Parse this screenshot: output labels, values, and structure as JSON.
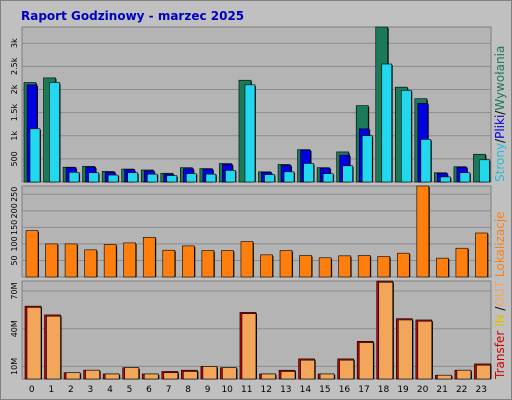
{
  "title": "Raport Godzinowy -  marzec 2025",
  "colors": {
    "background": "#c0c0c0",
    "plot": "#b4b4b4",
    "visits": "#1a7a5a",
    "files": "#0000e0",
    "pages": "#22d8ee",
    "sites": "#ff7f0e",
    "transfer_out": "#cc0000",
    "transfer_in": "#f2a65a",
    "title": "#0000c0"
  },
  "side_labels": {
    "top": [
      {
        "text": "Strony",
        "color": "#22c0d8"
      },
      {
        "text": "/",
        "color": "#000000"
      },
      {
        "text": "Pliki",
        "color": "#0000e0"
      },
      {
        "text": "/",
        "color": "#000000"
      },
      {
        "text": "Wywołania",
        "color": "#1a7a5a"
      }
    ],
    "middle": [
      {
        "text": "Lokalizacje",
        "color": "#ff7f0e"
      }
    ],
    "bottom": [
      {
        "text": "Transfer",
        "color": "#cc0000"
      },
      {
        "text": " IN ",
        "color": "#e0c000"
      },
      {
        "text": "/",
        "color": "#000000"
      },
      {
        "text": "OUT",
        "color": "#f2a65a"
      }
    ]
  },
  "chart_data": [
    {
      "type": "bar",
      "panel": "hits-files-pages",
      "categories": [
        "0",
        "1",
        "2",
        "3",
        "4",
        "5",
        "6",
        "7",
        "8",
        "9",
        "10",
        "11",
        "12",
        "13",
        "14",
        "15",
        "16",
        "17",
        "18",
        "19",
        "20",
        "21",
        "22",
        "23"
      ],
      "y_ticks": [
        "500",
        "1k",
        "1.5k",
        "2k",
        "2.5k",
        "3k"
      ],
      "ylim": [
        0,
        3350
      ],
      "series": [
        {
          "name": "Wywołania",
          "values": [
            2150,
            2250,
            320,
            340,
            230,
            280,
            260,
            190,
            310,
            290,
            400,
            2200,
            220,
            380,
            700,
            310,
            650,
            1650,
            3350,
            2050,
            1800,
            200,
            330,
            600
          ]
        },
        {
          "name": "Pliki",
          "values": [
            2100,
            0,
            310,
            320,
            210,
            270,
            240,
            170,
            290,
            280,
            380,
            0,
            210,
            360,
            690,
            300,
            580,
            1150,
            0,
            0,
            1700,
            190,
            320,
            0
          ]
        },
        {
          "name": "Strony",
          "values": [
            1150,
            2150,
            210,
            200,
            150,
            200,
            170,
            140,
            180,
            170,
            250,
            2100,
            160,
            220,
            400,
            180,
            350,
            1000,
            2550,
            1980,
            920,
            110,
            200,
            480
          ]
        }
      ]
    },
    {
      "type": "bar",
      "panel": "sites",
      "categories": [
        "0",
        "1",
        "2",
        "3",
        "4",
        "5",
        "6",
        "7",
        "8",
        "9",
        "10",
        "11",
        "12",
        "13",
        "14",
        "15",
        "16",
        "17",
        "18",
        "19",
        "20",
        "21",
        "22",
        "23"
      ],
      "y_ticks": [
        "50",
        "100",
        "150",
        "200",
        "250"
      ],
      "ylim": [
        0,
        275
      ],
      "series": [
        {
          "name": "Lokalizacje",
          "values": [
            140,
            100,
            100,
            82,
            98,
            103,
            120,
            81,
            94,
            80,
            80,
            107,
            67,
            80,
            65,
            58,
            64,
            65,
            62,
            72,
            275,
            57,
            87,
            133
          ]
        }
      ]
    },
    {
      "type": "bar",
      "panel": "transfer",
      "categories": [
        "0",
        "1",
        "2",
        "3",
        "4",
        "5",
        "6",
        "7",
        "8",
        "9",
        "10",
        "11",
        "12",
        "13",
        "14",
        "15",
        "16",
        "17",
        "18",
        "19",
        "20",
        "21",
        "22",
        "23"
      ],
      "y_ticks": [
        "10M",
        "40M",
        "70M"
      ],
      "ylim": [
        0,
        78
      ],
      "series": [
        {
          "name": "Transfer OUT",
          "values": [
            58,
            51,
            5,
            7,
            4,
            9,
            4,
            6,
            7,
            10,
            9,
            53,
            4,
            7,
            16,
            4,
            16,
            30,
            78,
            48,
            47,
            3,
            7,
            12
          ]
        },
        {
          "name": "Transfer IN",
          "values": [
            57,
            50,
            5,
            7,
            4,
            9,
            4,
            5,
            6,
            10,
            9,
            52,
            4,
            6,
            15,
            4,
            15,
            29,
            77,
            47,
            46,
            3,
            7,
            11
          ]
        }
      ]
    }
  ]
}
